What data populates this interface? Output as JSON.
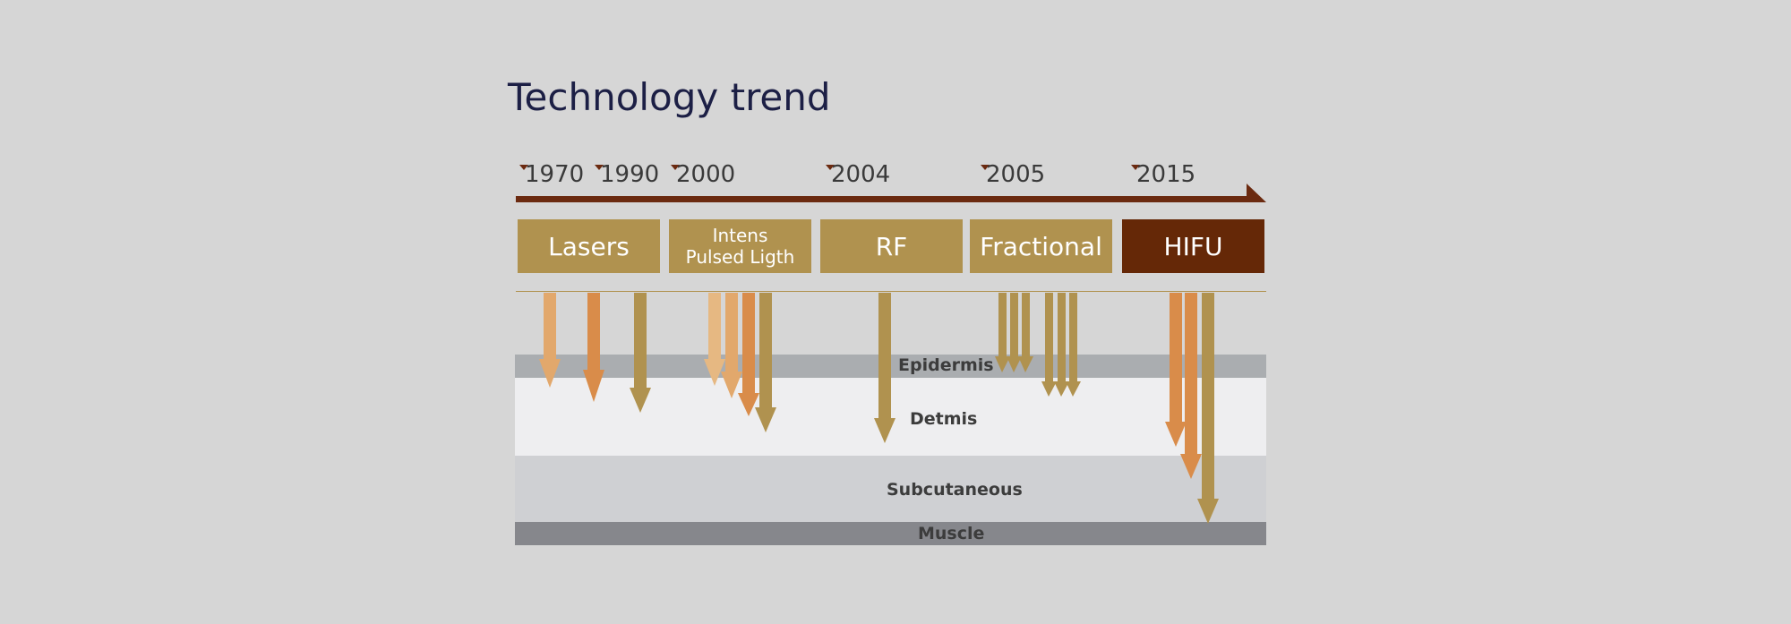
{
  "title": "Technology trend",
  "timeline": {
    "years": [
      "1970",
      "1990",
      "2000",
      "2004",
      "2005",
      "2015"
    ],
    "color": "#6b2a10"
  },
  "technologies": [
    {
      "label": "Lasers",
      "color": "#b0924f"
    },
    {
      "label_line1": "Intens",
      "label_line2": "Pulsed Ligth",
      "color": "#b0924f"
    },
    {
      "label": "RF",
      "color": "#b0924f"
    },
    {
      "label": "Fractional",
      "color": "#b0924f"
    },
    {
      "label": "HIFU",
      "color": "#652807"
    }
  ],
  "layers": {
    "epidermis": "Epidermis",
    "dermis": "Detmis",
    "subcutaneous": "Subcutaneous",
    "muscle": "Muscle"
  },
  "colors": {
    "background": "#d6d6d6",
    "epidermis": "#aaadb0",
    "dermis": "#eeeef0",
    "subcutaneous": "#cfd0d3",
    "muscle": "#86878c",
    "arrow_light": "#e2a86c",
    "arrow_orange": "#d98c4a",
    "arrow_gold": "#b0924f",
    "arrow_pale": "#e6b882"
  }
}
